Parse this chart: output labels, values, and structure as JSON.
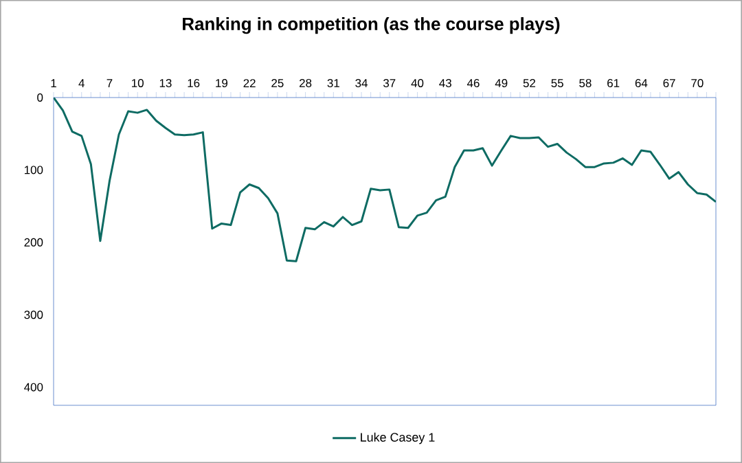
{
  "chart_data": {
    "type": "line",
    "title": "Ranking in competition (as the course plays)",
    "categories": [
      "1",
      null,
      null,
      "4",
      null,
      null,
      "7",
      null,
      null,
      "10",
      null,
      null,
      "13",
      null,
      null,
      "16",
      null,
      null,
      "19",
      null,
      null,
      "22",
      null,
      null,
      "25",
      null,
      null,
      "28",
      null,
      null,
      "31",
      null,
      null,
      "34",
      null,
      null,
      "37",
      null,
      null,
      "40",
      null,
      null,
      "43",
      null,
      null,
      "46",
      null,
      null,
      "49",
      null,
      null,
      "52",
      null,
      null,
      "55",
      null,
      null,
      "58",
      null,
      null,
      "61",
      null,
      null,
      "64",
      null,
      null,
      "67",
      null,
      null,
      "70",
      null,
      null
    ],
    "series": [
      {
        "name": "Luke Casey 1",
        "color": "#0e6b63",
        "values": [
          0,
          18,
          47,
          53,
          92,
          198,
          115,
          51,
          19,
          21,
          17,
          32,
          42,
          51,
          52,
          51,
          48,
          181,
          174,
          176,
          131,
          120,
          125,
          139,
          160,
          225,
          226,
          180,
          182,
          172,
          178,
          165,
          176,
          171,
          126,
          128,
          127,
          179,
          180,
          163,
          159,
          142,
          137,
          96,
          73,
          73,
          70,
          94,
          73,
          53,
          56,
          56,
          55,
          68,
          64,
          76,
          85,
          96,
          96,
          91,
          90,
          84,
          93,
          73,
          75,
          93,
          112,
          103,
          120,
          132,
          134,
          144
        ]
      }
    ],
    "ylim": [
      425,
      0
    ],
    "yticks": [
      0,
      100,
      200,
      300,
      400
    ],
    "grid": false,
    "legend": "bottom",
    "marker": "none",
    "line_style": "solid"
  }
}
